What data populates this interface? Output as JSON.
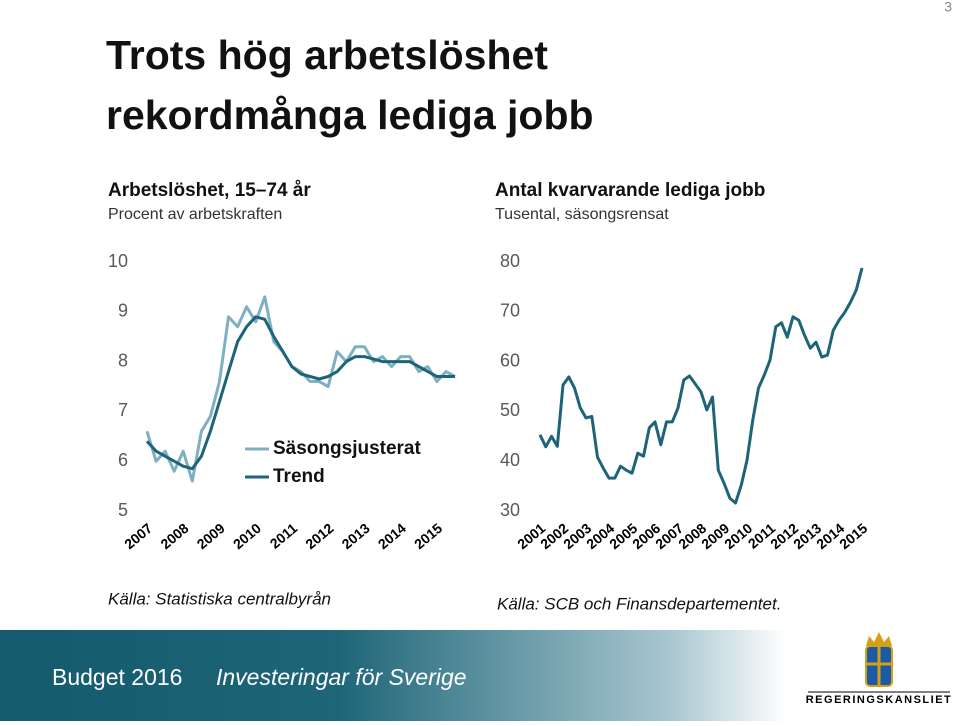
{
  "slide": {
    "title_lines": [
      "Trots hög arbetslöshet",
      "rekordmånga lediga jobb"
    ],
    "number": "3"
  },
  "chart_data": [
    {
      "type": "line",
      "title": "Arbetslöshet, 15–74 år",
      "subtitle": "Procent av arbetskraften",
      "source": "Källa: Statistiska centralbyrån",
      "x": [
        2007,
        2007.25,
        2007.5,
        2007.75,
        2008,
        2008.25,
        2008.5,
        2008.75,
        2009,
        2009.25,
        2009.5,
        2009.75,
        2010,
        2010.25,
        2010.5,
        2010.75,
        2011,
        2011.25,
        2011.5,
        2011.75,
        2012,
        2012.25,
        2012.5,
        2012.75,
        2013,
        2013.25,
        2013.5,
        2013.75,
        2014,
        2014.25,
        2014.5,
        2014.75,
        2015,
        2015.25,
        2015.5
      ],
      "series": [
        {
          "name": "Säsongsjusterat",
          "color": "#7fb0c2",
          "values": [
            6.6,
            6.0,
            6.2,
            5.8,
            6.2,
            5.6,
            6.6,
            6.9,
            7.6,
            8.9,
            8.7,
            9.1,
            8.8,
            9.3,
            8.4,
            8.2,
            7.9,
            7.8,
            7.6,
            7.6,
            7.5,
            8.2,
            8.0,
            8.3,
            8.3,
            8.0,
            8.1,
            7.9,
            8.1,
            8.1,
            7.8,
            7.9,
            7.6,
            7.8,
            7.7
          ]
        },
        {
          "name": "Trend",
          "color": "#1e6478",
          "values": [
            6.4,
            6.2,
            6.1,
            6.0,
            5.9,
            5.85,
            6.1,
            6.6,
            7.2,
            7.8,
            8.4,
            8.7,
            8.9,
            8.85,
            8.5,
            8.2,
            7.9,
            7.75,
            7.7,
            7.65,
            7.7,
            7.8,
            8.0,
            8.1,
            8.1,
            8.05,
            8.0,
            8.0,
            8.0,
            8.0,
            7.9,
            7.8,
            7.7,
            7.7,
            7.7
          ]
        }
      ],
      "xlim": [
        2007,
        2015.5
      ],
      "xticks": [
        2007,
        2008,
        2009,
        2010,
        2011,
        2012,
        2013,
        2014,
        2015
      ],
      "ylim": [
        5,
        10
      ],
      "yticks": [
        5,
        6,
        7,
        8,
        9,
        10
      ],
      "grid": false,
      "legend": "center"
    },
    {
      "type": "line",
      "title": "Antal kvarvarande lediga jobb",
      "subtitle": "Tusental, säsongsrensat",
      "source": "Källa: SCB och Finansdepartementet.",
      "x": [
        2001,
        2001.25,
        2001.5,
        2001.75,
        2002,
        2002.25,
        2002.5,
        2002.75,
        2003,
        2003.25,
        2003.5,
        2003.75,
        2004,
        2004.25,
        2004.5,
        2004.75,
        2005,
        2005.25,
        2005.5,
        2005.75,
        2006,
        2006.25,
        2006.5,
        2006.75,
        2007,
        2007.25,
        2007.5,
        2007.75,
        2008,
        2008.25,
        2008.5,
        2008.75,
        2009,
        2009.25,
        2009.5,
        2009.75,
        2010,
        2010.25,
        2010.5,
        2010.75,
        2011,
        2011.25,
        2011.5,
        2011.75,
        2012,
        2012.25,
        2012.5,
        2012.75,
        2013,
        2013.25,
        2013.5,
        2013.75,
        2014,
        2014.25,
        2014.5,
        2014.75,
        2015
      ],
      "series": [
        {
          "name": "Lediga jobb",
          "color": "#1e6478",
          "values": [
            45.3,
            42.9,
            45,
            43,
            55.3,
            56.9,
            54.7,
            50.7,
            48.7,
            49,
            40.8,
            38.6,
            36.6,
            36.6,
            39,
            38.2,
            37.6,
            41.6,
            41,
            46.7,
            47.9,
            43.3,
            47.9,
            47.9,
            50.7,
            56.3,
            57.1,
            55.5,
            53.9,
            50.3,
            52.9,
            38.2,
            35.6,
            32.6,
            31.6,
            35.2,
            40.2,
            48.3,
            54.7,
            57.3,
            60.3,
            67,
            67.8,
            64.9,
            69,
            68.3,
            65.3,
            62.7,
            63.9,
            60.9,
            61.3,
            66.3,
            68.3,
            69.9,
            71.9,
            74.4,
            78.8
          ]
        }
      ],
      "xlim": [
        2001,
        2015
      ],
      "xticks": [
        2001,
        2002,
        2003,
        2004,
        2005,
        2006,
        2007,
        2008,
        2009,
        2010,
        2011,
        2012,
        2013,
        2014,
        2015
      ],
      "ylim": [
        30,
        80
      ],
      "yticks": [
        30,
        40,
        50,
        60,
        70,
        80
      ],
      "grid": false
    }
  ],
  "footer": {
    "budget": "Budget 2016",
    "tagline": "Investeringar för Sverige",
    "logo_text": "REGERINGSKANSLIET"
  }
}
